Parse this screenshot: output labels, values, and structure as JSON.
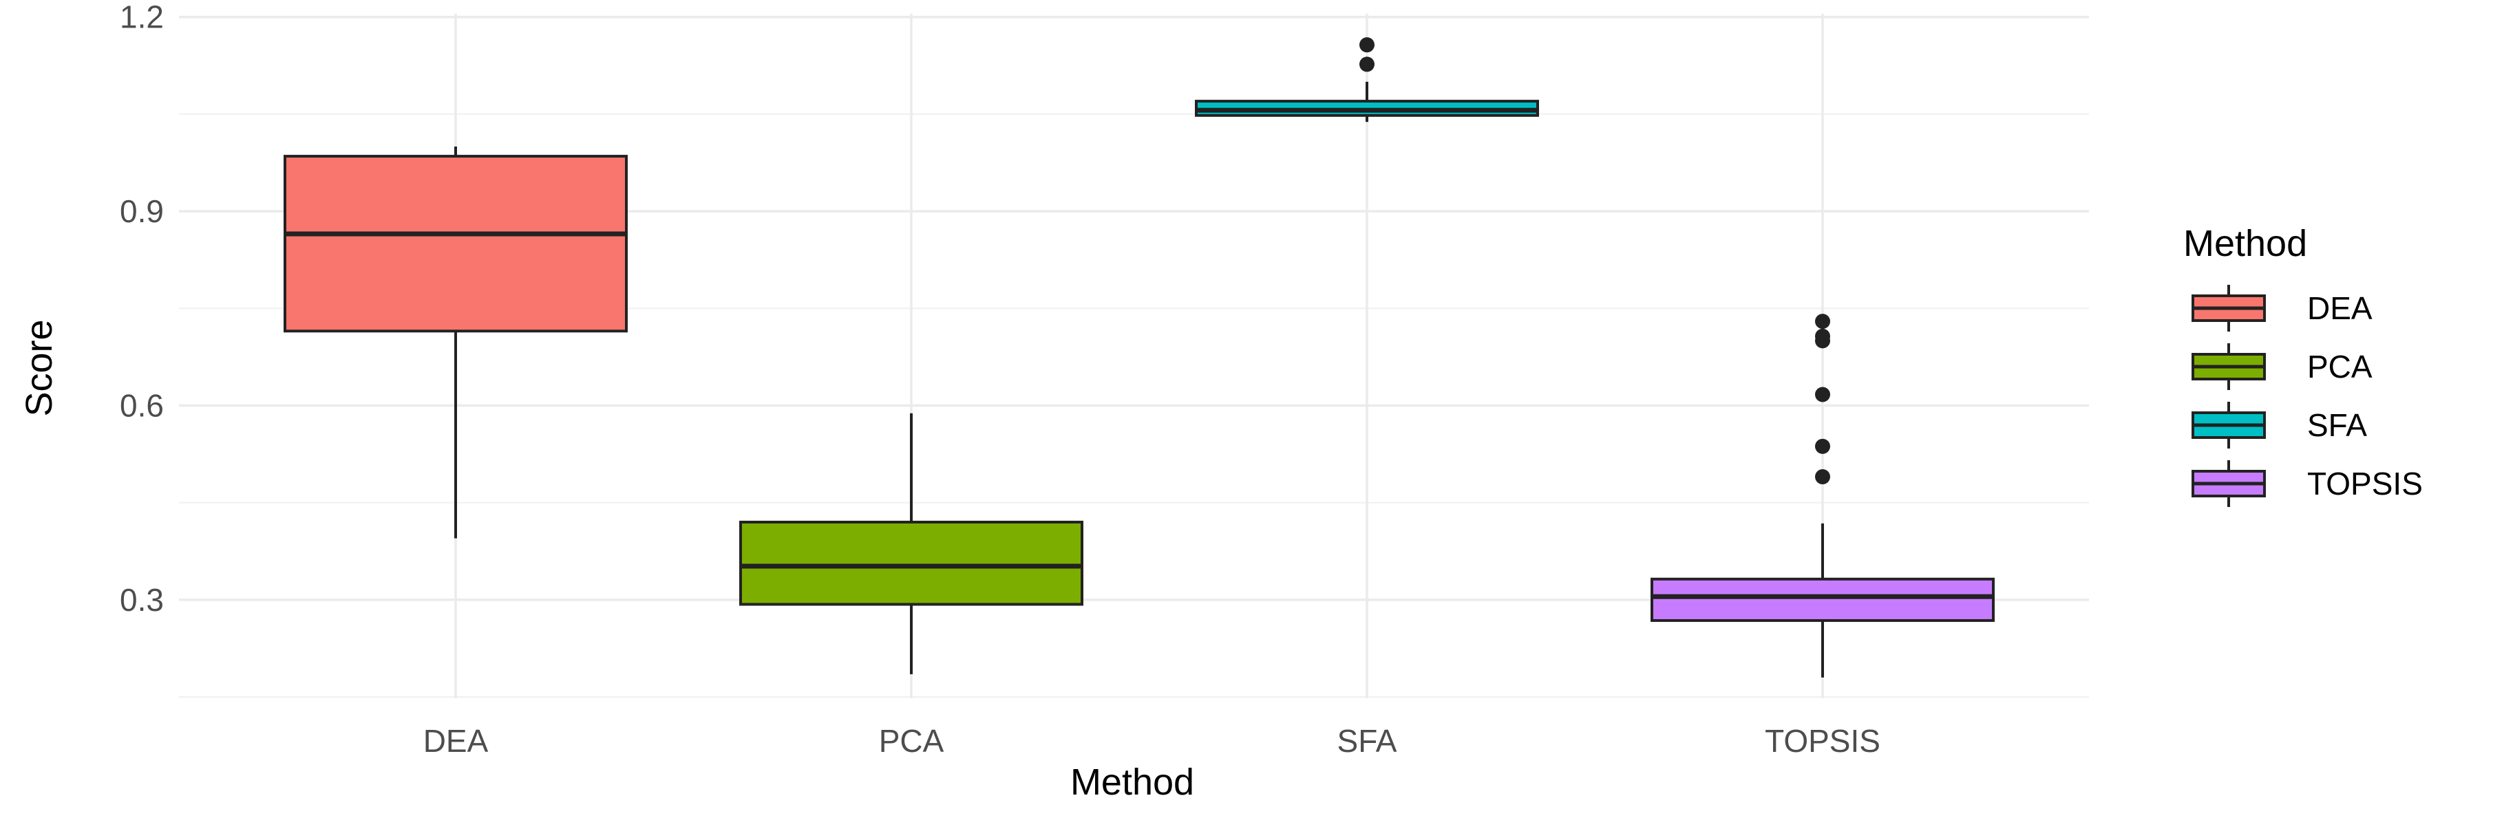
{
  "chart_data": {
    "type": "boxplot",
    "title": "",
    "xlabel": "Method",
    "ylabel": "Score",
    "ylim": [
      0.148,
      1.205
    ],
    "yticks": [
      0.3,
      0.6,
      0.9,
      1.2
    ],
    "ytick_labels": [
      "0.3",
      "0.6",
      "0.9",
      "1.2"
    ],
    "grid": true,
    "legend": {
      "title": "Method",
      "position": "right"
    },
    "categories": [
      "DEA",
      "PCA",
      "SFA",
      "TOPSIS"
    ],
    "series": [
      {
        "name": "DEA",
        "color": "#F8766D",
        "whisker_low": 0.395,
        "q1": 0.715,
        "median": 0.865,
        "q3": 0.985,
        "whisker_high": 1.0,
        "outliers": []
      },
      {
        "name": "PCA",
        "color": "#7CAE00",
        "whisker_low": 0.185,
        "q1": 0.293,
        "median": 0.352,
        "q3": 0.42,
        "whisker_high": 0.588,
        "outliers": []
      },
      {
        "name": "SFA",
        "color": "#00BFC4",
        "whisker_low": 1.038,
        "q1": 1.048,
        "median": 1.056,
        "q3": 1.07,
        "whisker_high": 1.1,
        "outliers": [
          1.127,
          1.157
        ]
      },
      {
        "name": "TOPSIS",
        "color": "#C77CFF",
        "whisker_low": 0.18,
        "q1": 0.268,
        "median": 0.305,
        "q3": 0.332,
        "whisker_high": 0.418,
        "outliers": [
          0.49,
          0.537,
          0.617,
          0.7,
          0.707,
          0.73
        ]
      }
    ]
  }
}
